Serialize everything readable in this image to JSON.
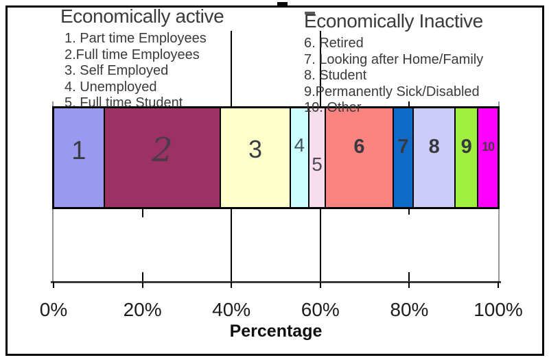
{
  "legend": {
    "active": {
      "title": "Economically active",
      "items": [
        "1. Part time Employees",
        "2.Full time Employees",
        "3. Self Employed",
        "4. Unemployed",
        "5. Full time Student"
      ]
    },
    "inactive": {
      "title": "Economically Inactive",
      "items": [
        "6. Retired",
        "7. Looking after Home/Family",
        "8. Student",
        "9.Permanently Sick/Disabled",
        "10. Other"
      ]
    }
  },
  "chart_data": {
    "type": "bar",
    "subtype": "100pct-stacked-horizontal",
    "title": "",
    "xlabel": "Percentage",
    "xlim": [
      0,
      100
    ],
    "x_tick_labels": [
      "0%",
      "20%",
      "40%",
      "60%",
      "80%",
      "100%"
    ],
    "gridlines_at_percent": [
      20,
      40,
      60,
      80
    ],
    "legend_position": "top",
    "series": [
      {
        "num": "1",
        "label": "Part time Employees",
        "group": "Economically active",
        "value_percent": 11.4,
        "color": "#9999F0"
      },
      {
        "num": "2",
        "label": "Full time Employees",
        "group": "Economically active",
        "value_percent": 31.0,
        "color": "#9C3263"
      },
      {
        "num": "3",
        "label": "Self Employed",
        "group": "Economically active",
        "value_percent": 17.9,
        "color": "#FFFFCC"
      },
      {
        "num": "4",
        "label": "Unemployed",
        "group": "Economically active",
        "value_percent": 2.2,
        "color": "#CCFFFF"
      },
      {
        "num": "5",
        "label": "Full time Student",
        "group": "Economically active",
        "value_percent": 1.5,
        "color": "#F8DEEC"
      },
      {
        "num": "6",
        "label": "Retired",
        "group": "Economically Inactive",
        "value_percent": 18.2,
        "color": "#FB8380"
      },
      {
        "num": "7",
        "label": "Looking after Home/Family",
        "group": "Economically Inactive",
        "value_percent": 2.6,
        "color": "#0E6BC8"
      },
      {
        "num": "8",
        "label": "Student",
        "group": "Economically Inactive",
        "value_percent": 9.6,
        "color": "#CCCCF8"
      },
      {
        "num": "9",
        "label": "Permanently Sick/Disabled",
        "group": "Economically Inactive",
        "value_percent": 3.4,
        "color": "#A0F040"
      },
      {
        "num": "10",
        "label": "Other",
        "group": "Economically Inactive",
        "value_percent": 2.2,
        "color": "#FF00FF"
      }
    ],
    "colors": {
      "axis": "#3A3A3A",
      "grid": "#000000",
      "text": "#333333"
    }
  }
}
